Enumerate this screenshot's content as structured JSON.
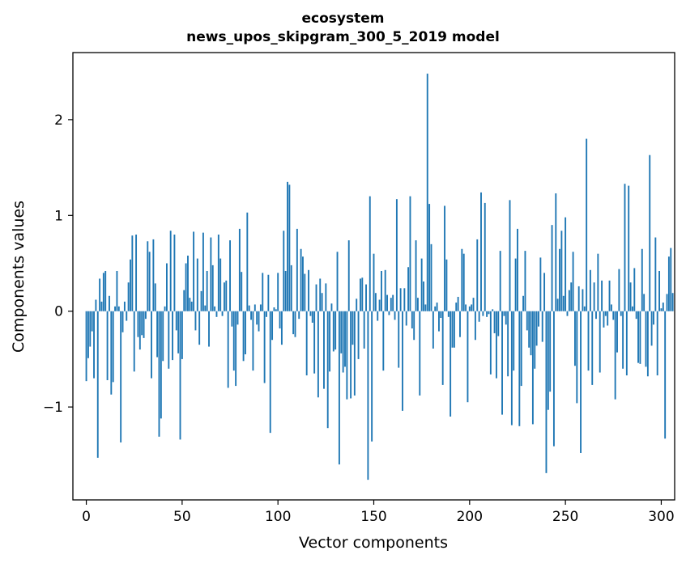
{
  "chart_data": {
    "type": "bar",
    "title_lines": [
      "ecosystem",
      "news_upos_skipgram_300_5_2019 model"
    ],
    "xlabel": "Vector components",
    "ylabel": "Components values",
    "xlim": [
      -7,
      307
    ],
    "ylim": [
      -1.97,
      2.7
    ],
    "xticks": [
      0,
      50,
      100,
      150,
      200,
      250,
      300
    ],
    "yticks": [
      -1,
      0,
      1,
      2
    ],
    "ytick_labels": [
      "−1",
      "0",
      "1",
      "2"
    ],
    "grid": false,
    "bar_color": "#1f77b4",
    "values": [
      -0.73,
      -0.49,
      -0.37,
      -0.21,
      -0.7,
      0.12,
      -1.53,
      0.34,
      0.1,
      0.4,
      0.42,
      -0.72,
      0.16,
      -0.87,
      -0.74,
      0.05,
      0.42,
      0.05,
      -1.37,
      -0.22,
      0.1,
      -0.1,
      0.3,
      0.54,
      0.79,
      -0.63,
      0.8,
      -0.27,
      -0.4,
      -0.25,
      -0.28,
      -0.08,
      0.73,
      0.62,
      -0.7,
      0.75,
      0.29,
      -0.48,
      -1.31,
      -1.12,
      -0.52,
      0.05,
      0.5,
      -0.6,
      0.84,
      -0.51,
      0.8,
      -0.2,
      -0.44,
      -1.34,
      -0.5,
      0.22,
      0.5,
      0.58,
      0.14,
      0.1,
      0.83,
      -0.2,
      0.55,
      -0.35,
      0.21,
      0.82,
      0.06,
      0.42,
      -0.37,
      0.77,
      0.48,
      0.05,
      -0.06,
      0.8,
      0.55,
      -0.05,
      0.3,
      0.32,
      -0.8,
      0.74,
      -0.16,
      -0.62,
      -0.78,
      -0.14,
      0.86,
      0.41,
      -0.52,
      -0.45,
      1.03,
      0.06,
      -0.09,
      -0.62,
      0.07,
      -0.14,
      -0.21,
      0.07,
      0.4,
      -0.75,
      -0.06,
      0.38,
      -1.27,
      -0.3,
      0.04,
      0.02,
      0.4,
      -0.18,
      -0.35,
      0.84,
      0.42,
      1.35,
      1.32,
      0.48,
      -0.24,
      -0.27,
      0.86,
      -0.08,
      0.65,
      0.57,
      0.39,
      -0.67,
      0.43,
      -0.05,
      -0.12,
      -0.65,
      0.28,
      -0.9,
      0.34,
      0.19,
      -0.81,
      0.29,
      -1.22,
      -0.63,
      0.08,
      -0.42,
      -0.4,
      0.62,
      -1.6,
      -0.44,
      -0.64,
      -0.58,
      -0.92,
      0.74,
      -0.91,
      -0.35,
      -0.88,
      0.13,
      -0.5,
      0.34,
      0.35,
      -0.39,
      0.28,
      -1.76,
      1.2,
      -1.36,
      0.6,
      0.19,
      -0.1,
      0.12,
      0.42,
      -0.62,
      0.43,
      0.17,
      -0.04,
      0.14,
      0.17,
      -0.09,
      1.17,
      -0.59,
      0.24,
      -1.04,
      0.24,
      -0.15,
      0.46,
      1.2,
      -0.18,
      -0.3,
      0.74,
      0.14,
      -0.88,
      0.55,
      0.31,
      0.07,
      2.48,
      1.12,
      0.7,
      -0.39,
      0.05,
      0.09,
      -0.21,
      -0.07,
      -0.77,
      1.1,
      0.54,
      -0.06,
      -1.1,
      -0.38,
      -0.38,
      0.09,
      0.15,
      -0.27,
      0.65,
      0.6,
      0.07,
      -0.95,
      0.05,
      0.07,
      0.14,
      -0.3,
      0.75,
      -0.11,
      1.24,
      -0.05,
      1.13,
      -0.06,
      -0.03,
      -0.66,
      0.02,
      -0.23,
      -0.7,
      -0.26,
      0.63,
      -1.08,
      -0.05,
      -0.14,
      -0.68,
      1.16,
      -1.19,
      -0.62,
      0.55,
      0.86,
      -1.2,
      -0.78,
      0.16,
      0.63,
      -0.2,
      -0.38,
      -0.46,
      -1.18,
      -0.6,
      -0.36,
      -0.16,
      0.56,
      -0.32,
      0.4,
      -1.69,
      -1.03,
      -0.84,
      0.9,
      -1.41,
      1.23,
      0.13,
      0.65,
      0.84,
      0.16,
      0.98,
      -0.05,
      0.22,
      0.3,
      0.62,
      -0.57,
      -0.96,
      0.26,
      -1.48,
      0.23,
      0.05,
      1.8,
      -0.62,
      0.43,
      -0.77,
      0.3,
      -0.08,
      0.6,
      -0.64,
      0.32,
      -0.17,
      -0.05,
      -0.15,
      0.32,
      0.07,
      -0.09,
      -0.92,
      -0.43,
      0.44,
      -0.05,
      -0.6,
      1.33,
      -0.67,
      1.31,
      0.3,
      0.05,
      0.45,
      -0.08,
      -0.54,
      -0.55,
      0.65,
      0.18,
      -0.58,
      -0.68,
      1.63,
      -0.36,
      -0.14,
      0.77,
      -0.67,
      0.42,
      0.03,
      0.09,
      -1.33,
      0.18,
      0.57,
      0.66,
      0.19
    ]
  }
}
